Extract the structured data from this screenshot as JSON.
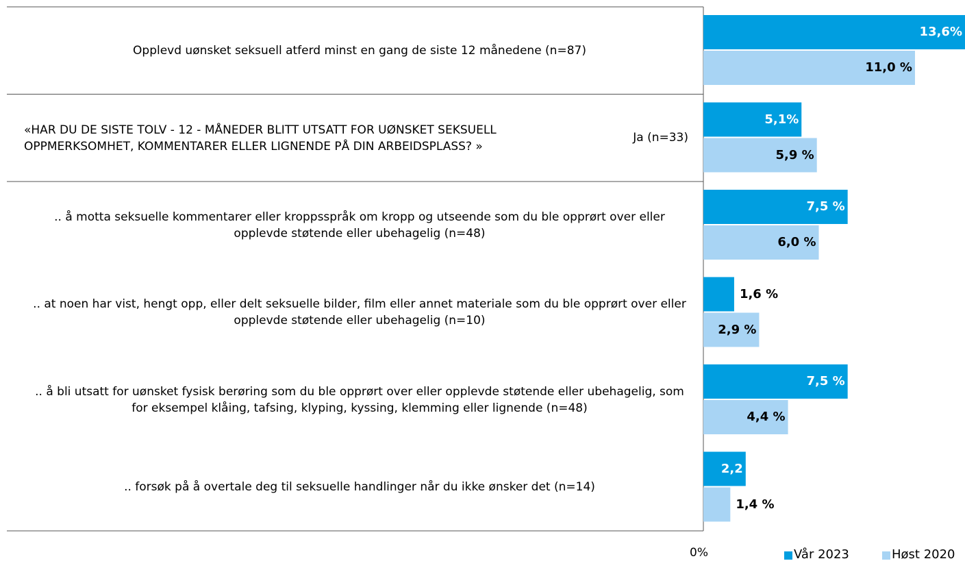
{
  "chart_data": {
    "type": "hbar",
    "categories": [
      "Opplevd uønsket seksuell atferd minst en gang de siste 12 månedene (n=87)",
      "Ja (n=33)",
      ".. å motta seksuelle kommentarer eller kroppsspråk om kropp og utseende som du ble opprørt over eller opplevde støtende eller ubehagelig (n=48)",
      ".. at noen har vist, hengt opp, eller delt seksuelle bilder, film eller annet materiale som du ble opprørt over eller opplevde støtende eller ubehagelig (n=10)",
      ".. å bli utsatt for uønsket fysisk berøring som du ble opprørt over eller opplevde støtende eller ubehagelig, som for eksempel klåing, tafsing, klyping, kyssing, klemming eller lignende (n=48)",
      ".. forsøk på å overtale deg til seksuelle handlinger når du ikke ønsker det (n=14)"
    ],
    "group_label": "«HAR DU DE SISTE TOLV - 12 - MÅNEDER BLITT UTSATT FOR UØNSKET SEKSUELL OPPMERKSOMHET, KOMMENTARER ELLER LIGNENDE PÅ DIN ARBEIDSPLASS? »",
    "series": [
      {
        "name": "Vår 2023",
        "color": "#009ee0",
        "label_color": "#ffffff",
        "values": [
          13.6,
          5.1,
          7.5,
          1.6,
          7.5,
          2.2
        ],
        "value_labels": [
          "13,6%",
          "5,1%",
          "7,5 %",
          "1,6 %",
          "7,5 %",
          "2,2"
        ]
      },
      {
        "name": "Høst 2020",
        "color": "#a8d4f4",
        "label_color": "#000000",
        "values": [
          11.0,
          5.9,
          6.0,
          2.9,
          4.4,
          1.4
        ],
        "value_labels": [
          "11,0 %",
          "5,9 %",
          "6,0 %",
          "2,9 %",
          "4,4 %",
          "1,4 %"
        ]
      }
    ],
    "xlim": [
      0,
      13.6
    ],
    "xticks": [
      {
        "value": 0,
        "label": "0%"
      }
    ],
    "legend": "bottom-right"
  }
}
